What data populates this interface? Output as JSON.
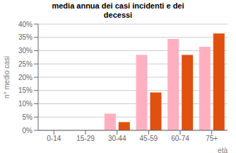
{
  "chart_data": {
    "type": "bar",
    "title": "media annua dei casi incidenti e dei\ndecessi",
    "categories": [
      "0-14",
      "15-29",
      "30-44",
      "45-59",
      "60-74",
      "75+"
    ],
    "series": [
      {
        "color": "#FFB0C0",
        "values": [
          0,
          0,
          0.063,
          0.284,
          0.344,
          0.315
        ]
      },
      {
        "color": "#E05010",
        "values": [
          0,
          0,
          0.031,
          0.143,
          0.284,
          0.365
        ]
      }
    ],
    "ylabel": "n° medio casi",
    "xlabel": "età",
    "ylim": [
      0,
      0.4
    ],
    "yticks": [
      {
        "value": 0.0,
        "label": "0%"
      },
      {
        "value": 0.05,
        "label": "5%"
      },
      {
        "value": 0.1,
        "label": "10%"
      },
      {
        "value": 0.15,
        "label": "15%"
      },
      {
        "value": 0.2,
        "label": "20%"
      },
      {
        "value": 0.25,
        "label": "25%"
      },
      {
        "value": 0.3,
        "label": "30%"
      },
      {
        "value": 0.35,
        "label": "35%"
      },
      {
        "value": 0.4,
        "label": "40%"
      }
    ],
    "grid": true
  }
}
